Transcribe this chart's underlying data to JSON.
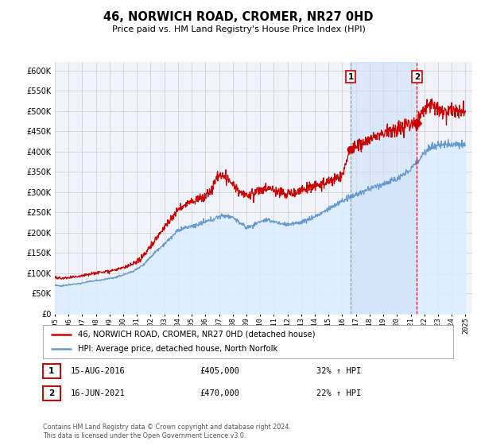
{
  "title": "46, NORWICH ROAD, CROMER, NR27 0HD",
  "subtitle": "Price paid vs. HM Land Registry's House Price Index (HPI)",
  "background_color": "#ffffff",
  "plot_bg_color": "#f0f4fa",
  "grid_color": "#cccccc",
  "red_line_color": "#cc0000",
  "blue_line_color": "#6699cc",
  "blue_fill_color": "#ddeeff",
  "highlight_color": "#ddeeff",
  "purchase1_date": 2016.62,
  "purchase1_price": 405000,
  "purchase1_label": "15-AUG-2016",
  "purchase1_pct": "32%",
  "purchase2_date": 2021.46,
  "purchase2_price": 470000,
  "purchase2_label": "16-JUN-2021",
  "purchase2_pct": "22%",
  "legend_line1": "46, NORWICH ROAD, CROMER, NR27 0HD (detached house)",
  "legend_line2": "HPI: Average price, detached house, North Norfolk",
  "footer1": "Contains HM Land Registry data © Crown copyright and database right 2024.",
  "footer2": "This data is licensed under the Open Government Licence v3.0.",
  "ylim_max": 620000,
  "ylim_min": 0,
  "xmin": 1995.0,
  "xmax": 2025.5,
  "hpi_anchors": [
    [
      1995.0,
      70000
    ],
    [
      1995.5,
      68000
    ],
    [
      1996.0,
      72000
    ],
    [
      1996.5,
      73000
    ],
    [
      1997.0,
      76000
    ],
    [
      1997.5,
      79000
    ],
    [
      1998.0,
      82000
    ],
    [
      1998.5,
      84000
    ],
    [
      1999.0,
      87000
    ],
    [
      1999.5,
      90000
    ],
    [
      2000.0,
      96000
    ],
    [
      2000.5,
      102000
    ],
    [
      2001.0,
      110000
    ],
    [
      2001.5,
      122000
    ],
    [
      2002.0,
      140000
    ],
    [
      2002.5,
      158000
    ],
    [
      2003.0,
      172000
    ],
    [
      2003.5,
      188000
    ],
    [
      2004.0,
      205000
    ],
    [
      2004.5,
      212000
    ],
    [
      2005.0,
      215000
    ],
    [
      2005.5,
      220000
    ],
    [
      2006.0,
      226000
    ],
    [
      2006.5,
      232000
    ],
    [
      2007.0,
      240000
    ],
    [
      2007.5,
      242000
    ],
    [
      2008.0,
      238000
    ],
    [
      2008.5,
      225000
    ],
    [
      2009.0,
      212000
    ],
    [
      2009.5,
      218000
    ],
    [
      2010.0,
      228000
    ],
    [
      2010.5,
      230000
    ],
    [
      2011.0,
      228000
    ],
    [
      2011.5,
      222000
    ],
    [
      2012.0,
      220000
    ],
    [
      2012.5,
      222000
    ],
    [
      2013.0,
      226000
    ],
    [
      2013.5,
      232000
    ],
    [
      2014.0,
      240000
    ],
    [
      2014.5,
      248000
    ],
    [
      2015.0,
      258000
    ],
    [
      2015.5,
      268000
    ],
    [
      2016.0,
      278000
    ],
    [
      2016.5,
      285000
    ],
    [
      2017.0,
      294000
    ],
    [
      2017.5,
      300000
    ],
    [
      2018.0,
      308000
    ],
    [
      2018.5,
      314000
    ],
    [
      2019.0,
      320000
    ],
    [
      2019.5,
      326000
    ],
    [
      2020.0,
      332000
    ],
    [
      2020.5,
      342000
    ],
    [
      2021.0,
      358000
    ],
    [
      2021.5,
      375000
    ],
    [
      2022.0,
      400000
    ],
    [
      2022.5,
      410000
    ],
    [
      2023.0,
      415000
    ],
    [
      2023.5,
      418000
    ],
    [
      2024.0,
      420000
    ],
    [
      2024.5,
      418000
    ],
    [
      2025.0,
      415000
    ]
  ],
  "price_anchors": [
    [
      1995.0,
      90000
    ],
    [
      1995.5,
      87000
    ],
    [
      1996.0,
      88000
    ],
    [
      1996.5,
      91000
    ],
    [
      1997.0,
      95000
    ],
    [
      1997.5,
      98000
    ],
    [
      1998.0,
      101000
    ],
    [
      1998.5,
      103000
    ],
    [
      1999.0,
      106000
    ],
    [
      1999.5,
      109000
    ],
    [
      2000.0,
      113000
    ],
    [
      2000.5,
      119000
    ],
    [
      2001.0,
      126000
    ],
    [
      2001.5,
      145000
    ],
    [
      2002.0,
      167000
    ],
    [
      2002.5,
      190000
    ],
    [
      2003.0,
      213000
    ],
    [
      2003.5,
      235000
    ],
    [
      2004.0,
      255000
    ],
    [
      2004.5,
      268000
    ],
    [
      2005.0,
      278000
    ],
    [
      2005.5,
      282000
    ],
    [
      2006.0,
      290000
    ],
    [
      2006.5,
      310000
    ],
    [
      2007.0,
      345000
    ],
    [
      2007.5,
      335000
    ],
    [
      2008.0,
      318000
    ],
    [
      2008.5,
      300000
    ],
    [
      2009.0,
      290000
    ],
    [
      2009.5,
      296000
    ],
    [
      2010.0,
      305000
    ],
    [
      2010.5,
      308000
    ],
    [
      2011.0,
      305000
    ],
    [
      2011.5,
      298000
    ],
    [
      2012.0,
      295000
    ],
    [
      2012.5,
      298000
    ],
    [
      2013.0,
      305000
    ],
    [
      2013.5,
      310000
    ],
    [
      2014.0,
      315000
    ],
    [
      2014.5,
      320000
    ],
    [
      2015.0,
      325000
    ],
    [
      2015.5,
      332000
    ],
    [
      2016.0,
      342000
    ],
    [
      2016.62,
      405000
    ],
    [
      2017.0,
      410000
    ],
    [
      2017.5,
      418000
    ],
    [
      2018.0,
      430000
    ],
    [
      2018.5,
      438000
    ],
    [
      2019.0,
      445000
    ],
    [
      2019.5,
      450000
    ],
    [
      2020.0,
      455000
    ],
    [
      2020.5,
      462000
    ],
    [
      2021.46,
      470000
    ],
    [
      2022.0,
      510000
    ],
    [
      2022.5,
      520000
    ],
    [
      2023.0,
      505000
    ],
    [
      2023.5,
      498000
    ],
    [
      2024.0,
      505000
    ],
    [
      2024.5,
      500000
    ],
    [
      2025.0,
      498000
    ]
  ]
}
